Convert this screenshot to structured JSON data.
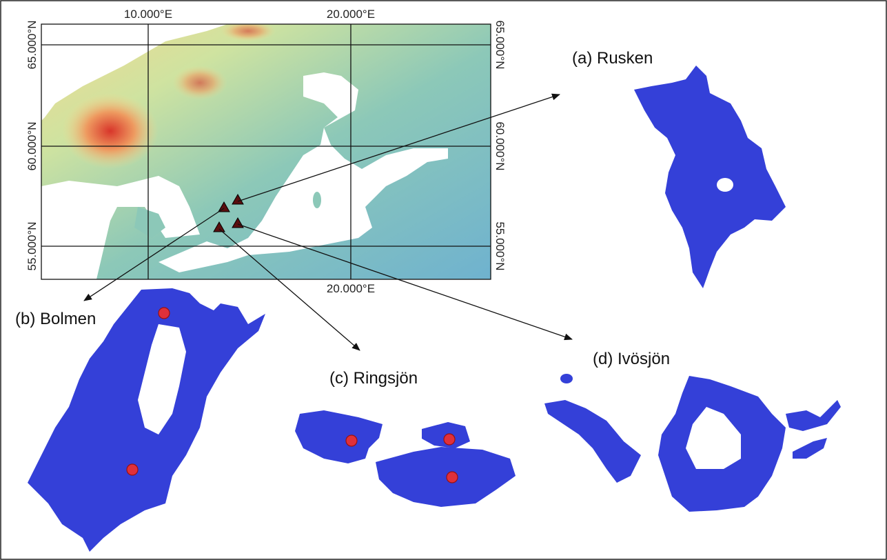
{
  "map": {
    "top_labels": [
      "10.000°E",
      "20.000°E"
    ],
    "bottom_labels": [
      "20.000°E"
    ],
    "left_labels": [
      "65.000°N",
      "60.000°N",
      "55.000°N"
    ],
    "right_labels": [
      "65.000°N",
      "60.000°N",
      "55.000°N"
    ]
  },
  "lakes": [
    {
      "label": "(a) Rusken"
    },
    {
      "label": "(b) Bolmen"
    },
    {
      "label": "(c) Ringsjön"
    },
    {
      "label": "(d) Ivösjön"
    }
  ]
}
